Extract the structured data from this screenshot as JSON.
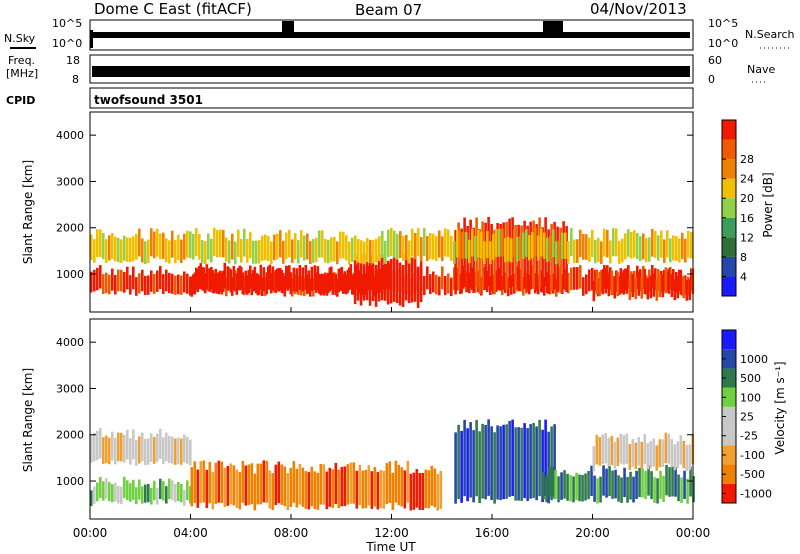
{
  "header": {
    "station": "Dome C East (fitACF)",
    "beam": "Beam 07",
    "date": "04/Nov/2013"
  },
  "colors": {
    "power_scale": [
      "#1a1aff",
      "#2447a8",
      "#2e6f3a",
      "#3c9c5a",
      "#8fd24a",
      "#f0c000",
      "#f08000",
      "#f05a00",
      "#f01a00"
    ],
    "velocity_scale": [
      "#f01a00",
      "#f08000",
      "#f0a030",
      "#c8c8c8",
      "#c8c8c8",
      "#6fd040",
      "#2f7a4a",
      "#2447a8",
      "#1a1aff"
    ]
  },
  "chart_data": [
    {
      "type": "line",
      "panel": "noise",
      "left_label": "N.Sky",
      "right_label": "N.Search",
      "left_ticks": [
        "10^5",
        "10^0"
      ],
      "right_ticks": [
        "10^5",
        "10^0"
      ]
    },
    {
      "type": "line",
      "panel": "frequency",
      "left_label_1": "Freq.",
      "left_label_2": "[MHz]",
      "right_label": "Nave",
      "left_ticks": [
        18,
        8
      ],
      "right_ticks": [
        60,
        0
      ]
    },
    {
      "type": "table",
      "panel": "cpid",
      "label": "CPID",
      "value": "twofsound 3501"
    },
    {
      "type": "heatmap",
      "panel": "power",
      "ylabel": "Slant Range [km]",
      "yticks": [
        1000,
        2000,
        3000,
        4000
      ],
      "ylim": [
        180,
        4500
      ],
      "colorbar_title": "Power [dB]",
      "colorbar_ticks": [
        4,
        8,
        12,
        16,
        20,
        24,
        28
      ],
      "bands": [
        {
          "x": [
            0,
            24
          ],
          "y": [
            600,
            1050
          ],
          "level": 8
        },
        {
          "x": [
            4,
            12
          ],
          "y": [
            600,
            1100
          ],
          "level": 9
        },
        {
          "x": [
            10.5,
            13.2
          ],
          "y": [
            350,
            1300
          ],
          "level": 9
        },
        {
          "x": [
            14.5,
            19
          ],
          "y": [
            650,
            2100
          ],
          "level": 8
        },
        {
          "x": [
            0,
            24
          ],
          "y": [
            1300,
            1850
          ],
          "level": 5
        },
        {
          "x": [
            20,
            24
          ],
          "y": [
            500,
            1000
          ],
          "level": 8
        }
      ]
    },
    {
      "type": "heatmap",
      "panel": "velocity",
      "ylabel": "Slant Range [km]",
      "yticks": [
        1000,
        2000,
        3000,
        4000
      ],
      "ylim": [
        180,
        4500
      ],
      "xticks": [
        "00:00",
        "04:00",
        "08:00",
        "12:00",
        "16:00",
        "20:00",
        "00:00"
      ],
      "xlabel": "Time UT",
      "colorbar_title": "Velocity [m s⁻¹]",
      "colorbar_ticks": [
        "1000",
        "500",
        "100",
        "25",
        "-25",
        "-100",
        "-500",
        "-1000"
      ],
      "bands": [
        {
          "x": [
            0,
            4
          ],
          "y": [
            1400,
            2000
          ],
          "level": 3
        },
        {
          "x": [
            0,
            4
          ],
          "y": [
            550,
            950
          ],
          "level": 5
        },
        {
          "x": [
            4,
            14
          ],
          "y": [
            450,
            1300
          ],
          "level": 1
        },
        {
          "x": [
            14.5,
            18.5
          ],
          "y": [
            600,
            2200
          ],
          "level": 7
        },
        {
          "x": [
            18,
            24
          ],
          "y": [
            600,
            1200
          ],
          "level": 6
        },
        {
          "x": [
            20,
            24
          ],
          "y": [
            1300,
            1900
          ],
          "level": 3
        }
      ]
    }
  ]
}
